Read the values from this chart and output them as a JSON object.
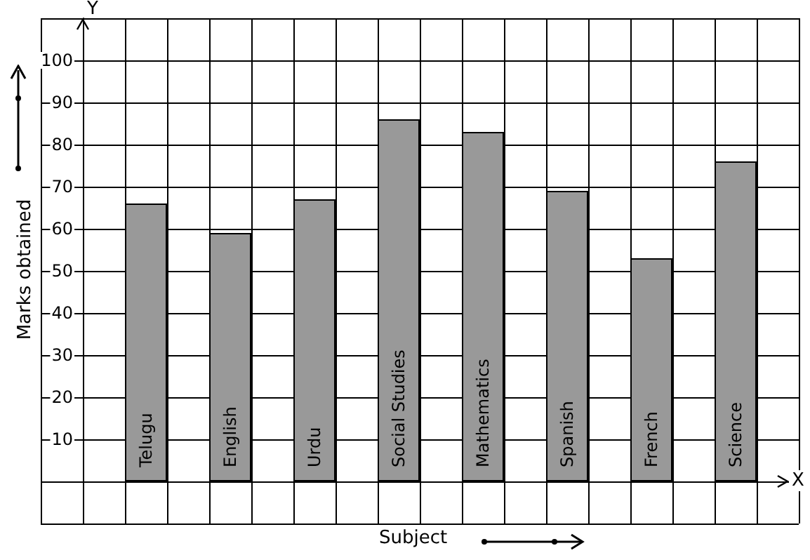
{
  "chart_data": {
    "type": "bar",
    "xlabel": "Subject",
    "ylabel": "Marks obtained",
    "annotations": [
      "X",
      "Y"
    ],
    "categories": [
      "Telugu",
      "English",
      "Urdu",
      "Social Studies",
      "Mathematics",
      "Spanish",
      "French",
      "Science"
    ],
    "values": [
      66,
      59,
      67,
      86,
      83,
      69,
      53,
      76
    ],
    "color": "#999999",
    "ylim": [
      -10,
      110
    ],
    "yticks": [
      {
        "value": -10,
        "label": null
      },
      {
        "value": 0,
        "label": null
      },
      10,
      20,
      30,
      40,
      50,
      60,
      70,
      80,
      90,
      100,
      {
        "value": 110,
        "label": null
      }
    ],
    "grid": true
  }
}
